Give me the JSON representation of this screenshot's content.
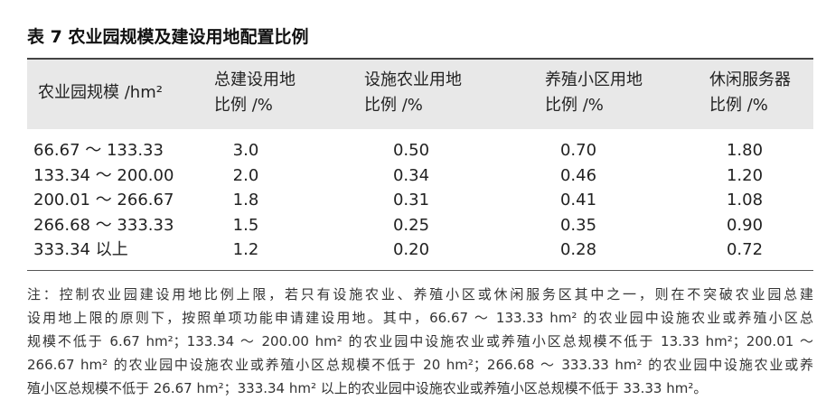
{
  "title": "表 7 农业园规模及建设用地配置比例",
  "table": {
    "header": [
      [
        "农业园规模 /hm²"
      ],
      [
        "总建设用地",
        "比例 /%"
      ],
      [
        "设施农业用地",
        "比例 /%"
      ],
      [
        "养殖小区用地",
        "比例 /%"
      ],
      [
        "休闲服务器",
        "比例 /%"
      ]
    ],
    "rows": [
      [
        "66.67 ～ 133.33",
        "3.0",
        "0.50",
        "0.70",
        "1.80"
      ],
      [
        "133.34 ～ 200.00",
        "2.0",
        "0.34",
        "0.46",
        "1.20"
      ],
      [
        "200.01 ～ 266.67",
        "1.8",
        "0.31",
        "0.41",
        "1.08"
      ],
      [
        "266.68 ～ 333.33",
        "1.5",
        "0.25",
        "0.35",
        "0.90"
      ],
      [
        "333.34 以上",
        "1.2",
        "0.20",
        "0.28",
        "0.72"
      ]
    ]
  },
  "note": [
    "注：控制农业园建设用地比例上限，若只有设施农业、养殖小区或休闲服务区其中之一，则在不突破农业园总建",
    "设用地上限的原则下，按照单项功能申请建设用地。其中，66.67 ～ 133.33 hm² 的农业园中设施农业或养殖小区总",
    "规模不低于 6.67 hm²；133.34 ～ 200.00 hm² 的农业园中设施农业或养殖小区总规模不低于 13.33 hm²；200.01 ～",
    "266.67 hm² 的农业园中设施农业或养殖小区总规模不低于 20 hm²；266.68 ～ 333.33 hm² 的农业园中设施农业或养",
    "殖小区总规模不低于 26.67 hm²；333.34 hm² 以上的农业园中设施农业或养殖小区总规模不低于 33.33 hm²。"
  ]
}
